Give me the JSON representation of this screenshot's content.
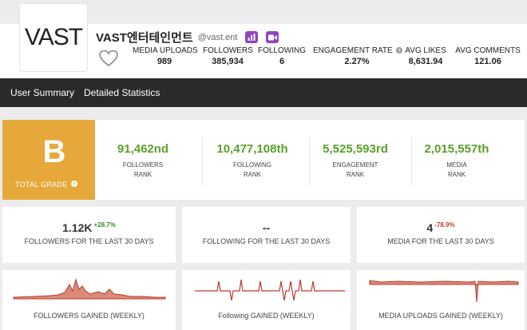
{
  "profile": {
    "logo_text": "VAST",
    "name": "VAST엔터테인먼트",
    "handle": "@vast.ent",
    "badges": [
      "chart-badge-icon",
      "video-badge-icon"
    ],
    "badge_color": "#8e44c4"
  },
  "stats": [
    {
      "label": "MEDIA UPLOADS",
      "value": "989"
    },
    {
      "label": "FOLLOWERS",
      "value": "385,934"
    },
    {
      "label": "FOLLOWING",
      "value": "6"
    },
    {
      "label": "ENGAGEMENT RATE",
      "value": "2.27%"
    },
    {
      "label": "AVG LIKES",
      "value": "8,631.94"
    },
    {
      "label": "AVG COMMENTS",
      "value": "121.06"
    }
  ],
  "nav": {
    "tabs": [
      {
        "label": "User Summary"
      },
      {
        "label": "Detailed Statistics"
      }
    ]
  },
  "grade": {
    "letter": "B",
    "label": "TOTAL GRADE",
    "color": "#e6a83a"
  },
  "ranks": [
    {
      "value": "91,462nd",
      "label_top": "FOLLOWERS",
      "label_bottom": "RANK"
    },
    {
      "value": "10,477,108th",
      "label_top": "FOLLOWING",
      "label_bottom": "RANK"
    },
    {
      "value": "5,525,593rd",
      "label_top": "ENGAGEMENT",
      "label_bottom": "RANK"
    },
    {
      "value": "2,015,557th",
      "label_top": "MEDIA",
      "label_bottom": "RANK"
    }
  ],
  "last30": [
    {
      "value": "1.12K",
      "change": "+28.7%",
      "direction": "up",
      "label": "FOLLOWERS FOR THE LAST 30 DAYS"
    },
    {
      "value": "--",
      "change": "",
      "direction": "",
      "label": "FOLLOWING FOR THE LAST 30 DAYS"
    },
    {
      "value": "4",
      "change": "-78.9%",
      "direction": "down",
      "label": "MEDIA FOR THE LAST 30 DAYS"
    }
  ],
  "weekly": [
    {
      "label": "FOLLOWERS GAINED (WEEKLY)"
    },
    {
      "label": "Following GAINED (WEEKLY)"
    },
    {
      "label": "MEDIA UPLOADS GAINED (WEEKLY)"
    }
  ],
  "colors": {
    "rank_green": "#5aa02c",
    "chart_line": "#c0392b",
    "nav_bg": "#2a2a2a"
  }
}
